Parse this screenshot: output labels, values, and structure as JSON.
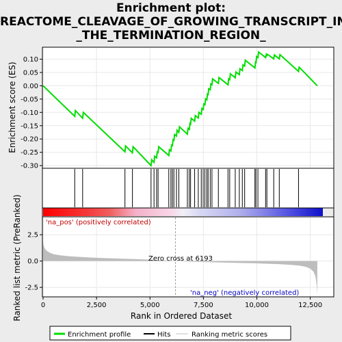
{
  "chart_data": {
    "type": "line",
    "title_lines": [
      "Enrichment plot:",
      "REACTOME_CLEAVAGE_OF_GROWING_TRANSCRIPT_IN",
      "_THE_TERMINATION_REGION_"
    ],
    "es_panel": {
      "ylabel": "Enrichment score (ES)",
      "ylim": [
        -0.31,
        0.145
      ],
      "yticks": [
        "-0.30",
        "-0.25",
        "-0.20",
        "-0.15",
        "-0.10",
        "-0.05",
        "0.00",
        "0.05",
        "0.10"
      ],
      "ytick_values": [
        -0.3,
        -0.25,
        -0.2,
        -0.15,
        -0.1,
        -0.05,
        0.0,
        0.05,
        0.1
      ],
      "line_color": "#00dd00",
      "profile": [
        [
          0,
          0.0
        ],
        [
          1480,
          -0.115
        ],
        [
          1510,
          -0.093
        ],
        [
          1850,
          -0.122
        ],
        [
          1880,
          -0.1
        ],
        [
          3830,
          -0.248
        ],
        [
          3860,
          -0.226
        ],
        [
          4180,
          -0.252
        ],
        [
          4210,
          -0.229
        ],
        [
          5050,
          -0.3
        ],
        [
          5080,
          -0.278
        ],
        [
          5190,
          -0.288
        ],
        [
          5220,
          -0.265
        ],
        [
          5310,
          -0.271
        ],
        [
          5340,
          -0.249
        ],
        [
          5380,
          -0.251
        ],
        [
          5410,
          -0.229
        ],
        [
          5880,
          -0.262
        ],
        [
          5910,
          -0.24
        ],
        [
          5980,
          -0.245
        ],
        [
          6010,
          -0.223
        ],
        [
          6050,
          -0.225
        ],
        [
          6080,
          -0.203
        ],
        [
          6120,
          -0.205
        ],
        [
          6150,
          -0.183
        ],
        [
          6240,
          -0.189
        ],
        [
          6270,
          -0.167
        ],
        [
          6350,
          -0.175
        ],
        [
          6380,
          -0.154
        ],
        [
          6750,
          -0.182
        ],
        [
          6780,
          -0.16
        ],
        [
          6840,
          -0.164
        ],
        [
          6870,
          -0.142
        ],
        [
          6900,
          -0.144
        ],
        [
          6930,
          -0.122
        ],
        [
          7090,
          -0.133
        ],
        [
          7120,
          -0.112
        ],
        [
          7260,
          -0.121
        ],
        [
          7290,
          -0.1
        ],
        [
          7400,
          -0.107
        ],
        [
          7430,
          -0.085
        ],
        [
          7490,
          -0.089
        ],
        [
          7520,
          -0.068
        ],
        [
          7570,
          -0.071
        ],
        [
          7600,
          -0.049
        ],
        [
          7660,
          -0.053
        ],
        [
          7690,
          -0.031
        ],
        [
          7720,
          -0.033
        ],
        [
          7750,
          -0.011
        ],
        [
          7820,
          -0.015
        ],
        [
          7850,
          0.007
        ],
        [
          7900,
          0.004
        ],
        [
          7930,
          0.026
        ],
        [
          8200,
          0.009
        ],
        [
          8230,
          0.031
        ],
        [
          8650,
          0.004
        ],
        [
          8680,
          0.026
        ],
        [
          8730,
          0.023
        ],
        [
          8760,
          0.045
        ],
        [
          8990,
          0.03
        ],
        [
          9020,
          0.052
        ],
        [
          9180,
          0.042
        ],
        [
          9210,
          0.064
        ],
        [
          9320,
          0.057
        ],
        [
          9350,
          0.079
        ],
        [
          9430,
          0.074
        ],
        [
          9460,
          0.096
        ],
        [
          9910,
          0.067
        ],
        [
          9940,
          0.089
        ],
        [
          9960,
          0.088
        ],
        [
          9990,
          0.11
        ],
        [
          10050,
          0.106
        ],
        [
          10080,
          0.127
        ],
        [
          10410,
          0.106
        ],
        [
          10440,
          0.118
        ],
        [
          10470,
          0.114
        ],
        [
          10500,
          0.118
        ],
        [
          10790,
          0.101
        ],
        [
          10820,
          0.116
        ],
        [
          11050,
          0.101
        ],
        [
          11080,
          0.117
        ],
        [
          11950,
          0.054
        ],
        [
          11980,
          0.07
        ],
        [
          12830,
          0.0
        ]
      ]
    },
    "hits": [
      1480,
      1850,
      3830,
      4180,
      5050,
      5190,
      5310,
      5380,
      5880,
      5980,
      6050,
      6120,
      6240,
      6350,
      6750,
      6840,
      6900,
      7090,
      7260,
      7400,
      7490,
      7570,
      7660,
      7720,
      7820,
      7900,
      8200,
      8650,
      8730,
      8990,
      9180,
      9320,
      9430,
      9910,
      9960,
      10050,
      10410,
      10470,
      10790,
      11050,
      11950
    ],
    "rank_panel": {
      "ylabel": "Ranked list metric (PreRanked)",
      "xlabel": "Rank in Ordered Dataset",
      "ylim": [
        -3.4,
        4.2
      ],
      "yticks": [
        "-2.5",
        "0.0",
        "2.5"
      ],
      "ytick_values": [
        -2.5,
        0.0,
        2.5
      ],
      "xlim": [
        0,
        13600
      ],
      "xticks": [
        "0",
        "2,500",
        "5,000",
        "7,500",
        "10,000",
        "12,500"
      ],
      "xtick_values": [
        0,
        2500,
        5000,
        7500,
        10000,
        12500
      ],
      "n_ranks": 12830,
      "metric_curve": [
        [
          0,
          1.8
        ],
        [
          30,
          1.45
        ],
        [
          80,
          1.2
        ],
        [
          150,
          1.0
        ],
        [
          300,
          0.8
        ],
        [
          500,
          0.65
        ],
        [
          800,
          0.55
        ],
        [
          1200,
          0.46
        ],
        [
          1800,
          0.38
        ],
        [
          2500,
          0.31
        ],
        [
          3500,
          0.24
        ],
        [
          4500,
          0.17
        ],
        [
          5500,
          0.09
        ],
        [
          6193,
          0.0
        ],
        [
          7000,
          -0.07
        ],
        [
          8000,
          -0.12
        ],
        [
          9000,
          -0.17
        ],
        [
          10000,
          -0.22
        ],
        [
          11000,
          -0.29
        ],
        [
          11600,
          -0.36
        ],
        [
          12000,
          -0.44
        ],
        [
          12300,
          -0.55
        ],
        [
          12500,
          -0.72
        ],
        [
          12650,
          -1.0
        ],
        [
          12750,
          -1.5
        ],
        [
          12800,
          -2.3
        ],
        [
          12830,
          -3.2
        ]
      ],
      "zero_cross": 6193,
      "zero_cross_label": "Zero cross at 6193",
      "pos_label": "'na_pos' (positively correlated)",
      "neg_label": "'na_neg' (negatively correlated)"
    },
    "legend": {
      "items": [
        {
          "label": "Enrichment profile",
          "color": "#00dd00"
        },
        {
          "label": "Hits",
          "color": "#000000"
        },
        {
          "label": "Ranking metric scores",
          "color": "#c0c0c0"
        }
      ]
    }
  }
}
